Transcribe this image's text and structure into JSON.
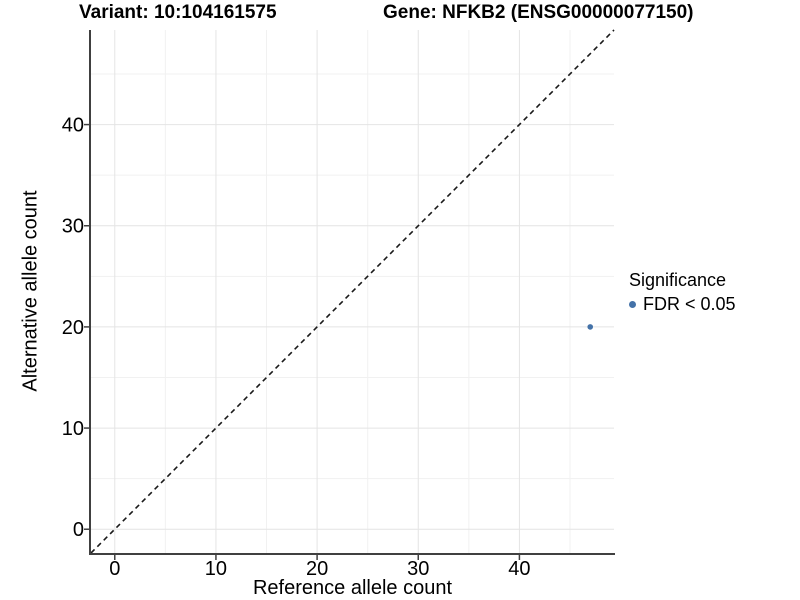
{
  "chart_data": {
    "type": "scatter",
    "titles": {
      "variant": "Variant: 10:104161575",
      "gene": "Gene: NFKB2 (ENSG00000077150)"
    },
    "xlabel": "Reference allele count",
    "ylabel": "Alternative allele count",
    "xlim": [
      -2.35,
      49.35
    ],
    "ylim": [
      -2.35,
      49.35
    ],
    "x_major_ticks": [
      0,
      10,
      20,
      30,
      40
    ],
    "y_major_ticks": [
      0,
      10,
      20,
      30,
      40
    ],
    "x_minor_ticks": [
      5,
      15,
      25,
      35,
      45
    ],
    "y_minor_ticks": [
      5,
      15,
      25,
      35,
      45
    ],
    "grid": true,
    "identity_line": {
      "style": "dashed",
      "slope": 1,
      "intercept": 0
    },
    "series": [
      {
        "name": "FDR < 0.05",
        "color": "#4472A8",
        "points": [
          {
            "x": 47,
            "y": 20
          }
        ]
      }
    ],
    "legend": {
      "title": "Significance",
      "position": "right",
      "items": [
        {
          "label": "FDR < 0.05",
          "color": "#4472A8"
        }
      ]
    }
  },
  "colors": {
    "background": "#ffffff",
    "grid_major": "#e4e4e4",
    "grid_minor": "#f1f1f1",
    "axis_line": "#404040",
    "identity_line": "#1a1a1a",
    "text": "#000000"
  }
}
